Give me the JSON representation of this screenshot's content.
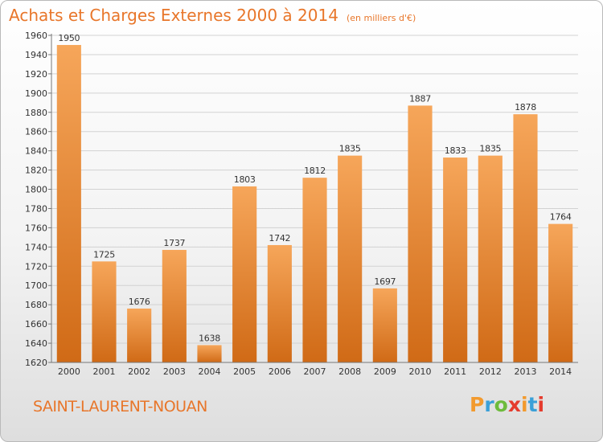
{
  "header": {
    "title": "Achats et Charges Externes 2000 à 2014",
    "subtitle": "(en milliers d'€)"
  },
  "footer": {
    "city": "SAINT-LAURENT-NOUAN",
    "logo_text": "Proxiti"
  },
  "colors": {
    "accent": "#e8762a",
    "bar_top": "#f6a65a",
    "bar_bottom": "#d06a16",
    "logo_letters": [
      "#f29a2e",
      "#3aa0d8",
      "#6dbb3c",
      "#e53c2e",
      "#f29a2e",
      "#3aa0d8",
      "#e53c2e"
    ]
  },
  "chart_data": {
    "type": "bar",
    "title": "Achats et Charges Externes 2000 à 2014",
    "subtitle": "(en milliers d'€)",
    "categories": [
      "2000",
      "2001",
      "2002",
      "2003",
      "2004",
      "2005",
      "2006",
      "2007",
      "2008",
      "2009",
      "2010",
      "2011",
      "2012",
      "2013",
      "2014"
    ],
    "values": [
      1950,
      1725,
      1676,
      1737,
      1638,
      1803,
      1742,
      1812,
      1835,
      1697,
      1887,
      1833,
      1835,
      1878,
      1764
    ],
    "ylim": [
      1620,
      1960
    ],
    "ytick_step": 20,
    "grid": true,
    "legend": "none"
  }
}
